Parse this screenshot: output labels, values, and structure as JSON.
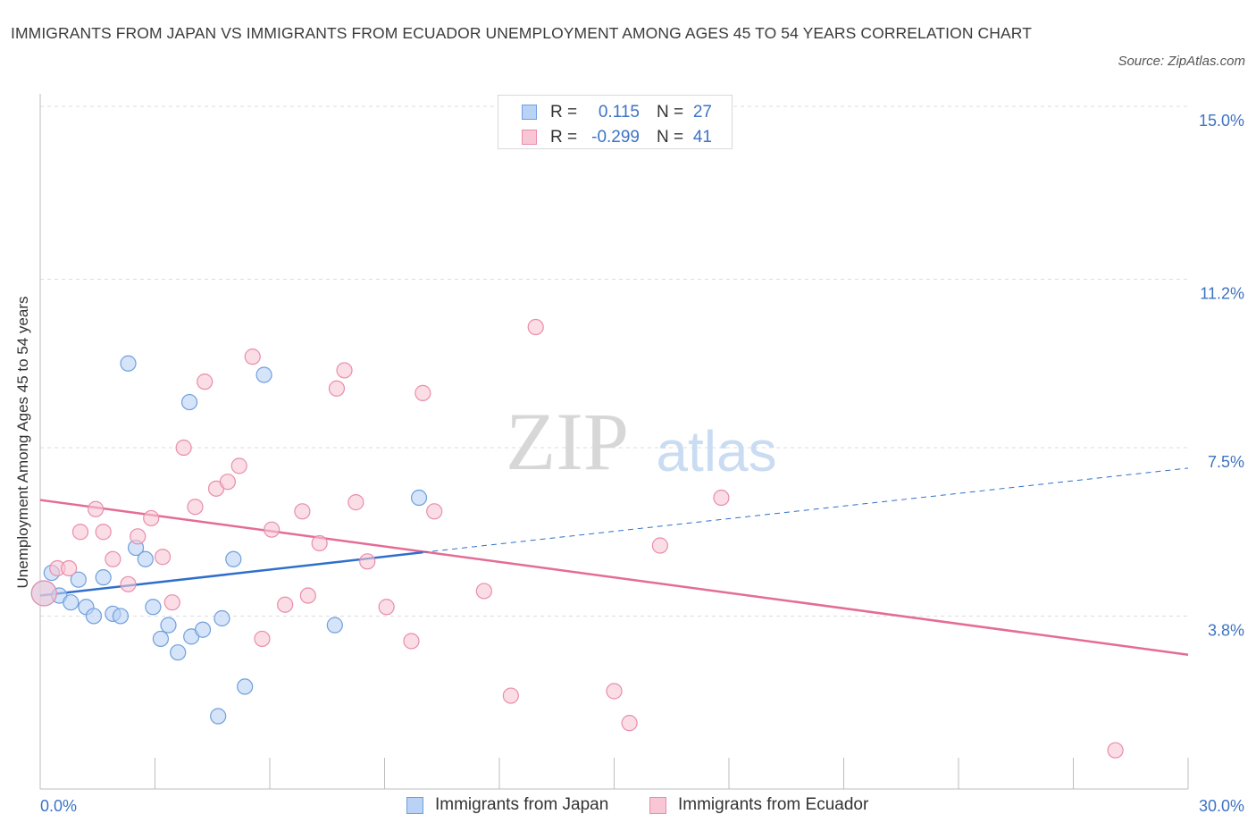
{
  "title": "IMMIGRANTS FROM JAPAN VS IMMIGRANTS FROM ECUADOR UNEMPLOYMENT AMONG AGES 45 TO 54 YEARS CORRELATION CHART",
  "source": "Source: ZipAtlas.com",
  "watermark": {
    "zip": "ZIP",
    "atlas": "atlas"
  },
  "legend": {
    "japan": {
      "r_label": "R =",
      "r_value": "0.115",
      "n_label": "N =",
      "n_value": "27"
    },
    "ecuador": {
      "r_label": "R =",
      "r_value": "-0.299",
      "n_label": "N =",
      "n_value": "41"
    }
  },
  "bottom_legend": {
    "japan": "Immigrants from Japan",
    "ecuador": "Immigrants from Ecuador"
  },
  "colors": {
    "japan_fill": "#b9d2f5",
    "japan_stroke": "#6f9fdc",
    "japan_line": "#2f6fcc",
    "ecuador_fill": "#f8c6d4",
    "ecuador_stroke": "#e98dab",
    "ecuador_line": "#e46c95",
    "tick_label": "#3d73c4",
    "grid": "#dddddd"
  },
  "chart_data": {
    "type": "scatter",
    "title": "IMMIGRANTS FROM JAPAN VS IMMIGRANTS FROM ECUADOR UNEMPLOYMENT AMONG AGES 45 TO 54 YEARS CORRELATION CHART",
    "xlabel": "",
    "ylabel": "Unemployment Among Ages 45 to 54 years",
    "xlim": [
      0,
      30
    ],
    "ylim": [
      0,
      15
    ],
    "x_tick_labels": [
      "0.0%",
      "30.0%"
    ],
    "y_ticks": [
      {
        "value": 3.8,
        "label": "3.8%"
      },
      {
        "value": 7.5,
        "label": "7.5%"
      },
      {
        "value": 11.2,
        "label": "11.2%"
      },
      {
        "value": 15.0,
        "label": "15.0%"
      }
    ],
    "grid": true,
    "series": [
      {
        "name": "Immigrants from Japan",
        "points": [
          {
            "x": 0.1,
            "y": 4.3
          },
          {
            "x": 0.3,
            "y": 4.75
          },
          {
            "x": 0.5,
            "y": 4.25
          },
          {
            "x": 0.8,
            "y": 4.1
          },
          {
            "x": 1.0,
            "y": 4.6
          },
          {
            "x": 1.2,
            "y": 4.0
          },
          {
            "x": 1.4,
            "y": 3.8
          },
          {
            "x": 1.65,
            "y": 4.65
          },
          {
            "x": 1.9,
            "y": 3.85
          },
          {
            "x": 2.1,
            "y": 3.8
          },
          {
            "x": 2.3,
            "y": 9.35
          },
          {
            "x": 2.5,
            "y": 5.3
          },
          {
            "x": 2.75,
            "y": 5.05
          },
          {
            "x": 2.95,
            "y": 4.0
          },
          {
            "x": 3.15,
            "y": 3.3
          },
          {
            "x": 3.35,
            "y": 3.6
          },
          {
            "x": 3.6,
            "y": 3.0
          },
          {
            "x": 3.9,
            "y": 8.5
          },
          {
            "x": 3.95,
            "y": 3.35
          },
          {
            "x": 4.25,
            "y": 3.5
          },
          {
            "x": 4.75,
            "y": 3.75
          },
          {
            "x": 5.05,
            "y": 5.05
          },
          {
            "x": 5.35,
            "y": 2.25
          },
          {
            "x": 5.85,
            "y": 9.1
          },
          {
            "x": 7.7,
            "y": 3.6
          },
          {
            "x": 9.9,
            "y": 6.4
          },
          {
            "x": 4.65,
            "y": 1.6
          }
        ],
        "trend": {
          "x_solid": [
            0.0,
            10.0
          ],
          "y_solid": [
            4.25,
            5.2
          ],
          "x_dashed": [
            10.0,
            30.0
          ],
          "y_dashed": [
            5.2,
            7.05
          ]
        }
      },
      {
        "name": "Immigrants from Ecuador",
        "points": [
          {
            "x": 0.1,
            "y": 4.3
          },
          {
            "x": 0.45,
            "y": 4.85
          },
          {
            "x": 0.75,
            "y": 4.85
          },
          {
            "x": 1.05,
            "y": 5.65
          },
          {
            "x": 1.45,
            "y": 6.15
          },
          {
            "x": 1.65,
            "y": 5.65
          },
          {
            "x": 1.9,
            "y": 5.05
          },
          {
            "x": 2.3,
            "y": 4.5
          },
          {
            "x": 2.55,
            "y": 5.55
          },
          {
            "x": 2.9,
            "y": 5.95
          },
          {
            "x": 3.2,
            "y": 5.1
          },
          {
            "x": 3.45,
            "y": 4.1
          },
          {
            "x": 3.75,
            "y": 7.5
          },
          {
            "x": 4.05,
            "y": 6.2
          },
          {
            "x": 4.3,
            "y": 8.95
          },
          {
            "x": 4.6,
            "y": 6.6
          },
          {
            "x": 4.9,
            "y": 6.75
          },
          {
            "x": 5.2,
            "y": 7.1
          },
          {
            "x": 5.55,
            "y": 9.5
          },
          {
            "x": 5.8,
            "y": 3.3
          },
          {
            "x": 6.05,
            "y": 5.7
          },
          {
            "x": 6.4,
            "y": 4.05
          },
          {
            "x": 6.85,
            "y": 6.1
          },
          {
            "x": 7.0,
            "y": 4.25
          },
          {
            "x": 7.3,
            "y": 5.4
          },
          {
            "x": 7.75,
            "y": 8.8
          },
          {
            "x": 7.95,
            "y": 9.2
          },
          {
            "x": 8.25,
            "y": 6.3
          },
          {
            "x": 8.55,
            "y": 5.0
          },
          {
            "x": 9.05,
            "y": 4.0
          },
          {
            "x": 9.7,
            "y": 3.25
          },
          {
            "x": 10.0,
            "y": 8.7
          },
          {
            "x": 10.3,
            "y": 6.1
          },
          {
            "x": 11.6,
            "y": 4.35
          },
          {
            "x": 12.3,
            "y": 2.05
          },
          {
            "x": 12.95,
            "y": 10.15
          },
          {
            "x": 15.0,
            "y": 2.15
          },
          {
            "x": 15.4,
            "y": 1.45
          },
          {
            "x": 16.2,
            "y": 5.35
          },
          {
            "x": 17.8,
            "y": 6.4
          },
          {
            "x": 28.1,
            "y": 0.85
          }
        ],
        "trend": {
          "x": [
            0.0,
            30.0
          ],
          "y": [
            6.35,
            2.95
          ]
        }
      }
    ]
  }
}
